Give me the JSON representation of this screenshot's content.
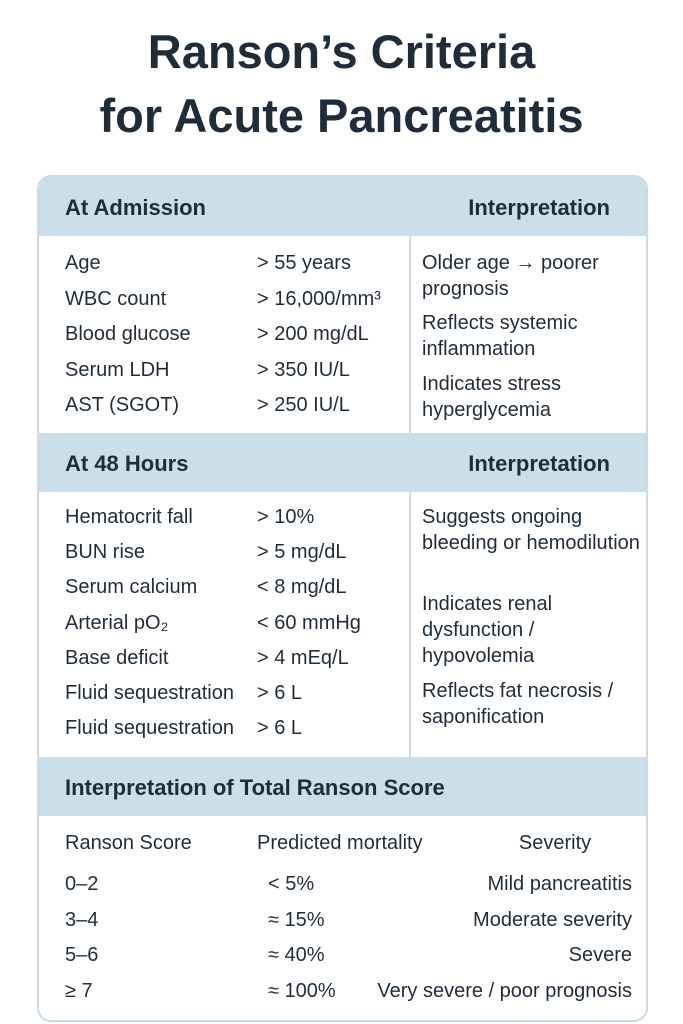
{
  "title": {
    "lines": [
      "Ranson’s  Criteria",
      "for  Acute Pancreatitis"
    ]
  },
  "admission": {
    "heading": "At Admission",
    "interpretation_heading": "Interpretation",
    "criteria": [
      [
        "Age",
        "> 55 years"
      ],
      [
        "WBC count",
        "> 16,000/mm³"
      ],
      [
        "Blood glucose",
        "> 200 mg/dL"
      ],
      [
        "Serum LDH",
        "> 350 IU/L"
      ],
      [
        "AST (SGOT)",
        "> 250 IU/L"
      ]
    ],
    "interpretations": [
      "Older age → poorer prognosis",
      "Reflects systemic inflammation",
      "Indicates stress hyperglycemia"
    ]
  },
  "hours48": {
    "heading": "At 48 Hours",
    "interpretation_heading": "Interpretation",
    "criteria": [
      [
        "Hematocrit fall",
        "> 10%"
      ],
      [
        "BUN rise",
        "> 5 mg/dL"
      ],
      [
        "Serum calcium",
        "< 8 mg/dL"
      ],
      [
        "Arterial pO₂",
        "< 60 mmHg"
      ],
      [
        "Base deficit",
        "> 4 mEq/L"
      ],
      [
        "Fluid sequestration",
        "> 6 L"
      ],
      [
        "Fluid sequestration",
        "> 6 L"
      ]
    ],
    "interpretations": [
      "Suggests ongoing bleeding or hemodilution",
      "Indicates renal dysfunction / hypovolemia",
      "Reflects fat necrosis / saponification"
    ]
  },
  "score": {
    "heading": "Interpretation of Total Ranson Score",
    "columns": [
      "Ranson Score",
      "Predicted mortality",
      "Severity"
    ],
    "rows": [
      [
        "0–2",
        "< 5%",
        "Mild pancreatitis"
      ],
      [
        "3–4",
        "≈ 15%",
        "Moderate severity"
      ],
      [
        "5–6",
        "≈ 40%",
        "Severe"
      ],
      [
        "≥ 7",
        "≈ 100%",
        "Very severe / poor prognosis"
      ]
    ]
  }
}
